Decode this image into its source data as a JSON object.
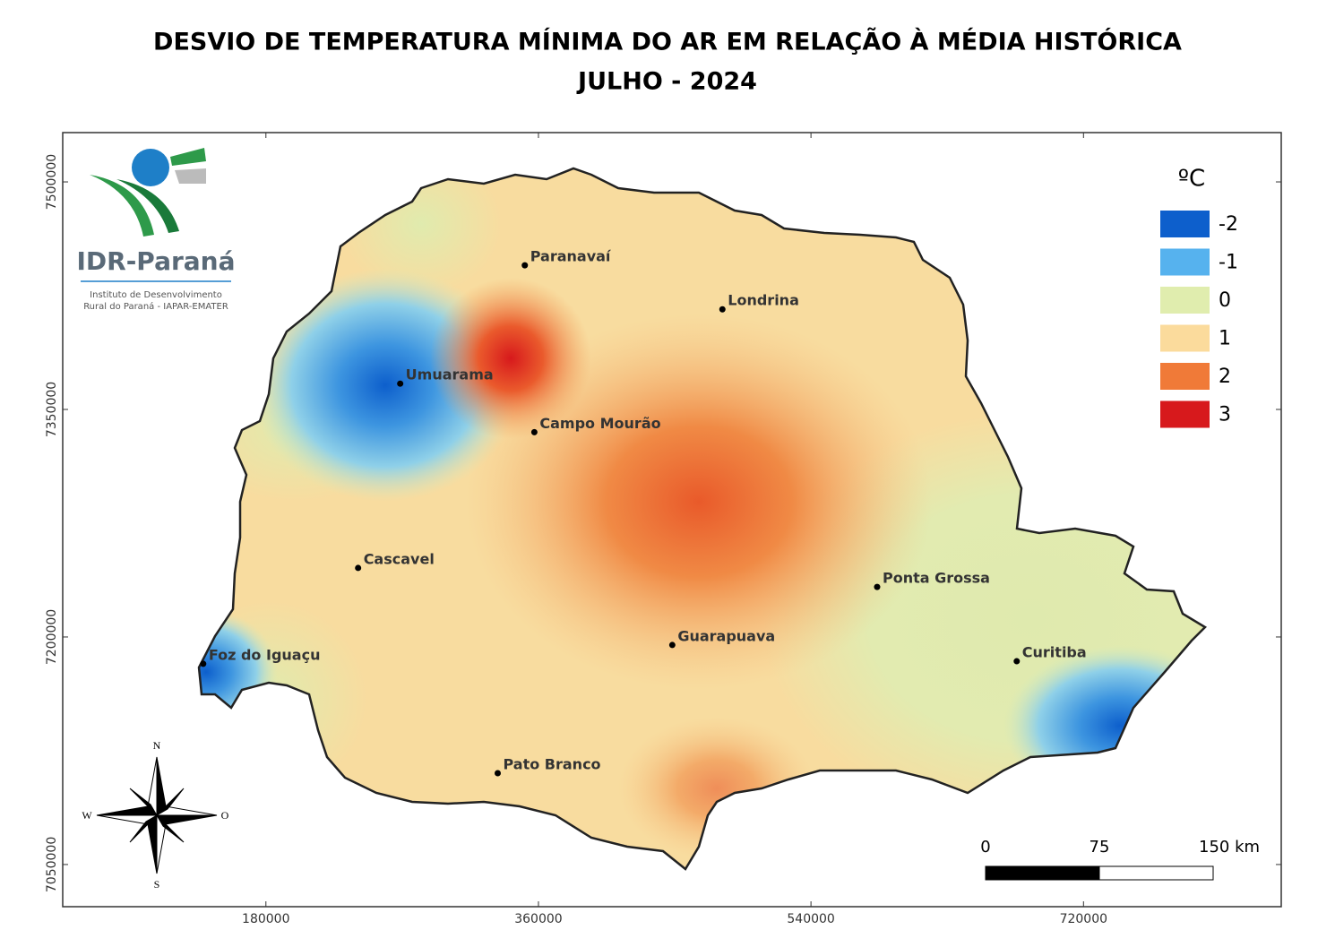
{
  "title": "DESVIO DE TEMPERATURA MÍNIMA DO AR EM RELAÇÃO À MÉDIA HISTÓRICA",
  "subtitle": "JULHO - 2024",
  "logo": {
    "name": "IDR-Paraná",
    "line1": "Instituto de Desenvolvimento",
    "line2": "Rural do Paraná - IAPAR-EMATER"
  },
  "legend": {
    "title": "ºC",
    "entries": [
      {
        "value": -2,
        "color": "#0d5fcc"
      },
      {
        "value": -1,
        "color": "#56b2ee"
      },
      {
        "value": 0,
        "color": "#e0edae"
      },
      {
        "value": 1,
        "color": "#fbdb9c"
      },
      {
        "value": 2,
        "color": "#f07a38"
      },
      {
        "value": 3,
        "color": "#d7191c"
      }
    ]
  },
  "map": {
    "xlim": [
      45800,
      850600
    ],
    "ylim": [
      7022200,
      7532500
    ],
    "xticks": [
      180000,
      360000,
      540000,
      720000
    ],
    "yticks": [
      7050000,
      7200000,
      7350000,
      7500000
    ],
    "cities": [
      {
        "name": "Paranavaí",
        "x": 351000,
        "y": 7445000
      },
      {
        "name": "Londrina",
        "x": 481500,
        "y": 7416000
      },
      {
        "name": "Umuarama",
        "x": 268700,
        "y": 7367000
      },
      {
        "name": "Campo Mourão",
        "x": 357300,
        "y": 7335000
      },
      {
        "name": "Cascavel",
        "x": 240900,
        "y": 7245500
      },
      {
        "name": "Ponta Grossa",
        "x": 583700,
        "y": 7233000
      },
      {
        "name": "Guarapuava",
        "x": 448400,
        "y": 7194700
      },
      {
        "name": "Foz do Iguaçu",
        "x": 138600,
        "y": 7182300
      },
      {
        "name": "Curitiba",
        "x": 675900,
        "y": 7184000
      },
      {
        "name": "Pato Branco",
        "x": 333100,
        "y": 7110200
      }
    ]
  },
  "scale_bar": {
    "labels": [
      "0",
      "75",
      "150 km"
    ]
  },
  "compass": {
    "north": "N",
    "west": "W",
    "east": "O",
    "south": "S"
  }
}
